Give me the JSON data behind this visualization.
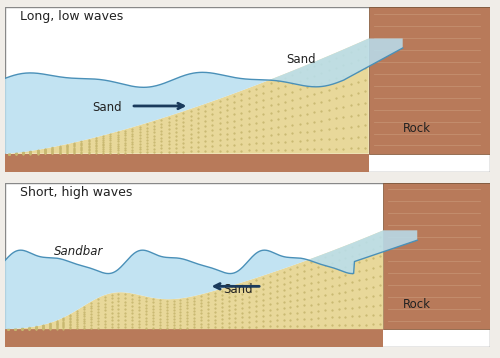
{
  "fig_width": 5.0,
  "fig_height": 3.58,
  "dpi": 100,
  "bg_color": "#f0ede8",
  "panel_bg": "#ffffff",
  "rock_color": "#b87a5a",
  "rock_dark": "#8B5E3C",
  "sand_color": "#e8d89a",
  "sand_dot_color": "#c8b870",
  "water_color": "#b8dff0",
  "water_edge_color": "#8cc8e8",
  "wave_line_color": "#4a90b8",
  "panel_border": "#888888",
  "text_color": "#222222",
  "arrow_color": "#1a3a5c",
  "panel1_title": "Long, low waves",
  "panel2_title": "Short, high waves",
  "label_sand1": "Sand",
  "label_rock1": "Rock",
  "label_sand2": "Sand",
  "label_sandbar": "Sandbar",
  "label_rock2": "Rock"
}
